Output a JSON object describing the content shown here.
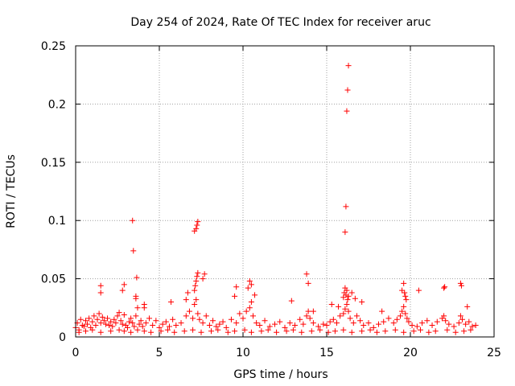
{
  "chart_data": {
    "type": "scatter",
    "title": "Day 254 of 2024, Rate Of TEC Index for receiver aruc",
    "xlabel": "GPS time / hours",
    "ylabel": "ROTI / TECUs",
    "xlim": [
      0,
      25
    ],
    "ylim": [
      0,
      0.25
    ],
    "x_ticks": [
      0,
      5,
      10,
      15,
      20,
      25
    ],
    "x_tick_labels": [
      "0",
      "5",
      "10",
      "15",
      "20",
      "25"
    ],
    "y_ticks": [
      0,
      0.05,
      0.1,
      0.15,
      0.2,
      0.25
    ],
    "y_tick_labels": [
      "0",
      "0.05",
      "0.1",
      "0.15",
      "0.2",
      "0.25"
    ],
    "grid": true,
    "marker": "+",
    "color": "#ff0000",
    "series": [
      {
        "x": [
          0.0,
          0.1,
          0.2,
          0.3,
          0.4,
          0.5,
          0.6,
          0.7,
          0.8,
          0.9,
          1.0,
          1.1,
          1.2,
          1.3,
          1.4,
          1.5,
          1.6,
          1.7,
          1.8,
          1.9,
          2.0,
          2.1,
          2.2,
          2.3,
          2.4,
          2.5,
          2.6,
          2.7,
          2.8,
          2.9,
          3.0,
          3.1,
          3.2,
          3.3,
          3.4,
          3.5,
          3.6,
          3.7,
          3.8,
          3.9,
          4.0,
          4.2,
          4.4,
          4.6,
          4.8,
          5.0,
          5.2,
          5.4,
          5.6,
          5.8,
          6.0,
          6.3,
          6.6,
          6.8,
          7.0,
          7.1,
          7.2,
          7.3,
          7.4,
          7.6,
          7.8,
          8.0,
          8.2,
          8.4,
          8.6,
          8.8,
          9.0,
          9.3,
          9.6,
          9.8,
          10.0,
          10.2,
          10.4,
          10.5,
          10.6,
          10.8,
          11.0,
          11.3,
          11.6,
          11.9,
          12.2,
          12.5,
          12.8,
          13.1,
          13.4,
          13.6,
          13.8,
          13.9,
          14.0,
          14.2,
          14.5,
          14.8,
          15.0,
          15.2,
          15.4,
          15.6,
          15.8,
          16.0,
          16.1,
          16.2,
          16.3,
          16.4,
          16.6,
          16.8,
          17.0,
          17.2,
          17.5,
          17.8,
          18.1,
          18.4,
          18.7,
          19.0,
          19.2,
          19.4,
          19.5,
          19.6,
          19.7,
          19.8,
          19.9,
          20.1,
          20.4,
          20.7,
          21.0,
          21.3,
          21.6,
          21.9,
          22.0,
          22.1,
          22.3,
          22.6,
          22.9,
          23.0,
          23.1,
          23.3,
          23.5,
          23.7,
          23.9,
          0.2,
          0.6,
          1.0,
          1.5,
          2.1,
          2.6,
          2.9,
          3.3,
          3.7,
          4.1,
          4.5,
          5.1,
          5.5,
          5.9,
          6.5,
          7.0,
          7.5,
          8.1,
          8.5,
          9.1,
          9.5,
          10.1,
          10.5,
          11.1,
          11.5,
          12.0,
          12.6,
          13.0,
          13.5,
          14.1,
          14.6,
          15.1,
          15.5,
          16.0,
          16.5,
          17.1,
          17.6,
          18.0,
          18.5,
          19.1,
          19.6,
          20.2,
          20.6,
          21.1,
          21.5,
          22.2,
          22.7,
          23.2,
          23.6,
          1.5,
          1.5,
          2.8,
          2.9,
          3.6,
          3.6,
          4.1,
          4.1,
          5.7,
          6.6,
          6.7,
          7.1,
          7.15,
          7.2,
          7.25,
          7.3,
          7.6,
          7.7,
          9.5,
          9.6,
          10.3,
          10.4,
          10.5,
          10.7,
          12.9,
          13.8,
          13.9,
          14.2,
          15.3,
          15.7,
          16.0,
          16.05,
          16.1,
          16.15,
          16.2,
          16.25,
          16.3,
          16.5,
          16.7,
          17.1,
          18.3,
          19.5,
          19.6,
          19.65,
          19.7,
          19.75,
          20.5,
          22.0,
          22.05,
          23.0,
          23.05,
          23.4,
          3.4,
          3.45,
          3.65,
          7.1,
          7.2,
          7.25,
          7.3,
          16.1,
          16.15,
          16.2,
          16.25,
          16.3
        ],
        "y": [
          0.008,
          0.012,
          0.006,
          0.015,
          0.01,
          0.009,
          0.014,
          0.011,
          0.016,
          0.008,
          0.013,
          0.018,
          0.01,
          0.015,
          0.02,
          0.012,
          0.017,
          0.014,
          0.011,
          0.016,
          0.01,
          0.013,
          0.009,
          0.015,
          0.012,
          0.018,
          0.021,
          0.014,
          0.011,
          0.019,
          0.01,
          0.008,
          0.013,
          0.016,
          0.012,
          0.009,
          0.018,
          0.025,
          0.011,
          0.014,
          0.009,
          0.012,
          0.016,
          0.01,
          0.014,
          0.008,
          0.011,
          0.013,
          0.009,
          0.015,
          0.01,
          0.012,
          0.018,
          0.022,
          0.016,
          0.028,
          0.032,
          0.02,
          0.015,
          0.012,
          0.018,
          0.01,
          0.014,
          0.009,
          0.011,
          0.013,
          0.008,
          0.015,
          0.012,
          0.02,
          0.016,
          0.022,
          0.025,
          0.03,
          0.018,
          0.012,
          0.01,
          0.014,
          0.009,
          0.011,
          0.013,
          0.008,
          0.012,
          0.01,
          0.015,
          0.011,
          0.018,
          0.022,
          0.016,
          0.012,
          0.009,
          0.011,
          0.01,
          0.013,
          0.015,
          0.012,
          0.018,
          0.02,
          0.024,
          0.028,
          0.022,
          0.016,
          0.012,
          0.018,
          0.014,
          0.01,
          0.012,
          0.008,
          0.011,
          0.013,
          0.016,
          0.012,
          0.015,
          0.018,
          0.022,
          0.026,
          0.02,
          0.016,
          0.013,
          0.01,
          0.009,
          0.012,
          0.014,
          0.01,
          0.013,
          0.016,
          0.018,
          0.014,
          0.011,
          0.009,
          0.012,
          0.018,
          0.015,
          0.011,
          0.013,
          0.009,
          0.01,
          0.004,
          0.005,
          0.006,
          0.004,
          0.005,
          0.006,
          0.005,
          0.004,
          0.006,
          0.005,
          0.004,
          0.005,
          0.006,
          0.004,
          0.005,
          0.006,
          0.004,
          0.005,
          0.006,
          0.004,
          0.005,
          0.006,
          0.004,
          0.005,
          0.006,
          0.004,
          0.005,
          0.006,
          0.004,
          0.005,
          0.006,
          0.004,
          0.005,
          0.006,
          0.004,
          0.005,
          0.006,
          0.004,
          0.005,
          0.006,
          0.004,
          0.005,
          0.006,
          0.004,
          0.005,
          0.006,
          0.004,
          0.005,
          0.006,
          0.038,
          0.044,
          0.04,
          0.045,
          0.033,
          0.035,
          0.028,
          0.025,
          0.03,
          0.032,
          0.038,
          0.04,
          0.044,
          0.048,
          0.052,
          0.055,
          0.05,
          0.054,
          0.035,
          0.043,
          0.042,
          0.048,
          0.045,
          0.036,
          0.031,
          0.054,
          0.046,
          0.022,
          0.028,
          0.026,
          0.034,
          0.038,
          0.042,
          0.036,
          0.04,
          0.032,
          0.035,
          0.038,
          0.033,
          0.03,
          0.022,
          0.04,
          0.046,
          0.038,
          0.035,
          0.032,
          0.04,
          0.042,
          0.043,
          0.046,
          0.044,
          0.026,
          0.1,
          0.074,
          0.051,
          0.091,
          0.093,
          0.096,
          0.099,
          0.09,
          0.112,
          0.194,
          0.212,
          0.233
        ]
      }
    ]
  }
}
